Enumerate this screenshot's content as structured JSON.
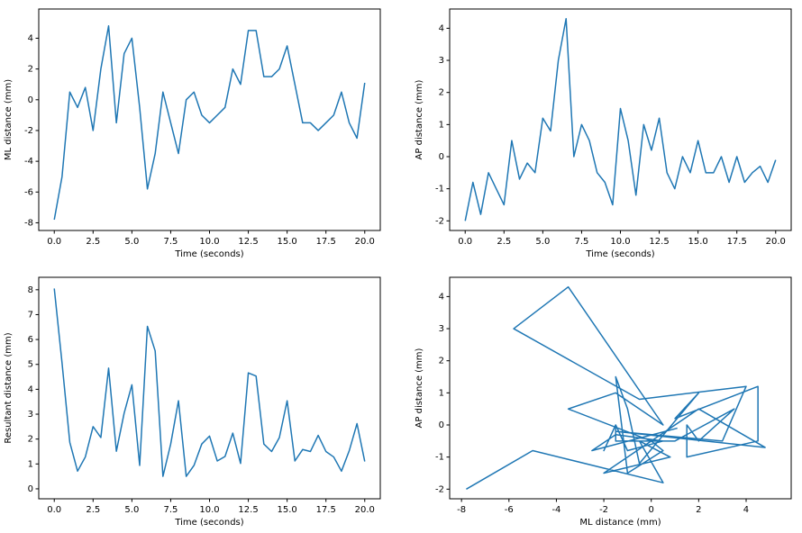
{
  "chart_data": [
    {
      "type": "line",
      "xlabel": "Time (seconds)",
      "ylabel": "ML distance (mm)",
      "color": "#1f77b4",
      "x": [
        0,
        0.5,
        1,
        1.5,
        2,
        2.5,
        3,
        3.5,
        4,
        4.5,
        5,
        5.5,
        6,
        6.5,
        7,
        7.5,
        8,
        8.5,
        9,
        9.5,
        10,
        10.5,
        11,
        11.5,
        12,
        12.5,
        13,
        13.5,
        14,
        14.5,
        15,
        15.5,
        16,
        16.5,
        17,
        17.5,
        18,
        18.5,
        19,
        19.5,
        20
      ],
      "values": [
        -7.8,
        -5,
        0.5,
        -0.5,
        0.8,
        -2,
        2,
        4.8,
        -1.5,
        3,
        4,
        -0.5,
        -5.8,
        -3.5,
        0.5,
        -1.5,
        -3.5,
        0,
        0.5,
        -1,
        -1.5,
        -1,
        -0.5,
        2,
        1,
        4.5,
        4.5,
        1.5,
        1.5,
        2,
        3.5,
        1,
        -1.5,
        -1.5,
        -2,
        -1.5,
        -1,
        0.5,
        -1.5,
        -2.5,
        1.1
      ],
      "xlim": [
        -1,
        21
      ],
      "ylim": [
        -8.5,
        5.9
      ],
      "xticks": [
        {
          "value": 0,
          "label": "0.0"
        },
        2.5,
        {
          "value": 5,
          "label": "5.0"
        },
        7.5,
        {
          "value": 10,
          "label": "10.0"
        },
        12.5,
        {
          "value": 15,
          "label": "15.0"
        },
        17.5,
        {
          "value": 20,
          "label": "20.0"
        }
      ],
      "yticks": [
        -8,
        -6,
        -4,
        -2,
        0,
        2,
        4
      ]
    },
    {
      "type": "line",
      "xlabel": "Time (seconds)",
      "ylabel": "AP distance (mm)",
      "color": "#1f77b4",
      "x": [
        0,
        0.5,
        1,
        1.5,
        2,
        2.5,
        3,
        3.5,
        4,
        4.5,
        5,
        5.5,
        6,
        6.5,
        7,
        7.5,
        8,
        8.5,
        9,
        9.5,
        10,
        10.5,
        11,
        11.5,
        12,
        12.5,
        13,
        13.5,
        14,
        14.5,
        15,
        15.5,
        16,
        16.5,
        17,
        17.5,
        18,
        18.5,
        19,
        19.5,
        20
      ],
      "values": [
        -2,
        -0.8,
        -1.8,
        -0.5,
        -1,
        -1.5,
        0.5,
        -0.7,
        -0.2,
        -0.5,
        1.2,
        0.8,
        3,
        4.3,
        0,
        1,
        0.5,
        -0.5,
        -0.8,
        -1.5,
        1.5,
        0.5,
        -1.2,
        1,
        0.2,
        1.2,
        -0.5,
        -1,
        0,
        -0.5,
        0.5,
        -0.5,
        -0.5,
        0,
        -0.8,
        0,
        -0.8,
        -0.5,
        -0.3,
        -0.8,
        -0.1
      ],
      "xlim": [
        -1,
        21
      ],
      "ylim": [
        -2.3,
        4.6
      ],
      "xticks": [
        {
          "value": 0,
          "label": "0.0"
        },
        2.5,
        {
          "value": 5,
          "label": "5.0"
        },
        7.5,
        {
          "value": 10,
          "label": "10.0"
        },
        12.5,
        {
          "value": 15,
          "label": "15.0"
        },
        17.5,
        {
          "value": 20,
          "label": "20.0"
        }
      ],
      "yticks": [
        -2,
        -1,
        0,
        1,
        2,
        3,
        4
      ]
    },
    {
      "type": "line",
      "xlabel": "Time (seconds)",
      "ylabel": "Resultant distance (mm)",
      "color": "#1f77b4",
      "x": [
        0,
        0.5,
        1,
        1.5,
        2,
        2.5,
        3,
        3.5,
        4,
        4.5,
        5,
        5.5,
        6,
        6.5,
        7,
        7.5,
        8,
        8.5,
        9,
        9.5,
        10,
        10.5,
        11,
        11.5,
        12,
        12.5,
        13,
        13.5,
        14,
        14.5,
        15,
        15.5,
        16,
        16.5,
        17,
        17.5,
        18,
        18.5,
        19,
        19.5,
        20
      ],
      "values": [
        8.05,
        5.06,
        1.87,
        0.71,
        1.28,
        2.5,
        2.06,
        4.85,
        1.51,
        3.04,
        4.18,
        0.94,
        6.53,
        5.54,
        0.5,
        1.8,
        3.54,
        0.5,
        0.94,
        1.8,
        2.12,
        1.12,
        1.3,
        2.24,
        1.02,
        4.66,
        4.53,
        1.8,
        1.5,
        2.06,
        3.54,
        1.12,
        1.58,
        1.5,
        2.15,
        1.5,
        1.28,
        0.71,
        1.53,
        2.62,
        1.1
      ],
      "xlim": [
        -1,
        21
      ],
      "ylim": [
        -0.4,
        8.5
      ],
      "xticks": [
        {
          "value": 0,
          "label": "0.0"
        },
        2.5,
        {
          "value": 5,
          "label": "5.0"
        },
        7.5,
        {
          "value": 10,
          "label": "10.0"
        },
        12.5,
        {
          "value": 15,
          "label": "15.0"
        },
        17.5,
        {
          "value": 20,
          "label": "20.0"
        }
      ],
      "yticks": [
        0,
        1,
        2,
        3,
        4,
        5,
        6,
        7,
        8
      ]
    },
    {
      "type": "line",
      "xlabel": "ML distance (mm)",
      "ylabel": "AP distance (mm)",
      "color": "#1f77b4",
      "x": [
        -7.8,
        -5,
        0.5,
        -0.5,
        0.8,
        -2,
        2,
        4.8,
        -1.5,
        3,
        4,
        -0.5,
        -5.8,
        -3.5,
        0.5,
        -1.5,
        -3.5,
        0,
        0.5,
        -1,
        -1.5,
        -1,
        -0.5,
        2,
        1,
        4.5,
        4.5,
        1.5,
        1.5,
        2,
        3.5,
        1,
        -1.5,
        -1.5,
        -2,
        -1.5,
        -1,
        0.5,
        -1.5,
        -2.5,
        1.1
      ],
      "values": [
        -2,
        -0.8,
        -1.8,
        -0.5,
        -1,
        -1.5,
        0.5,
        -0.7,
        -0.2,
        -0.5,
        1.2,
        0.8,
        3,
        4.3,
        0,
        1,
        0.5,
        -0.5,
        -0.8,
        -1.5,
        1.5,
        0.5,
        -1.2,
        1,
        0.2,
        1.2,
        -0.5,
        -1,
        0,
        -0.5,
        0.5,
        -0.5,
        -0.5,
        0,
        -0.8,
        0,
        -0.8,
        -0.5,
        -0.3,
        -0.8,
        -0.1
      ],
      "xlim": [
        -8.5,
        5.9
      ],
      "ylim": [
        -2.3,
        4.6
      ],
      "xticks": [
        -8,
        -6,
        -4,
        -2,
        0,
        2,
        4
      ],
      "yticks": [
        -2,
        -1,
        0,
        1,
        2,
        3,
        4
      ]
    }
  ]
}
